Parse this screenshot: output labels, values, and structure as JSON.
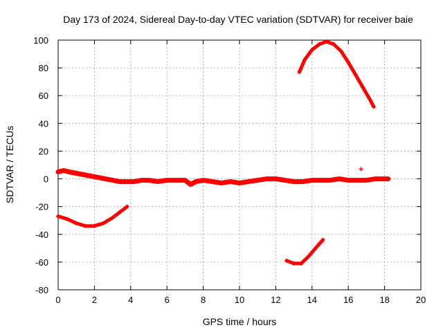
{
  "chart_data": {
    "type": "scatter",
    "title": "Day 173 of 2024, Sidereal Day-to-day VTEC variation (SDTVAR) for receiver baie",
    "xlabel": "GPS time / hours",
    "ylabel": "SDTVAR / TECUs",
    "xlim": [
      0,
      20
    ],
    "ylim": [
      -80,
      100
    ],
    "x_ticks": [
      0,
      2,
      4,
      6,
      8,
      10,
      12,
      14,
      16,
      18,
      20
    ],
    "y_ticks": [
      -80,
      -60,
      -40,
      -20,
      0,
      20,
      40,
      60,
      80,
      100
    ],
    "grid": true,
    "marker": "+",
    "marker_color": "#ff0000",
    "series": [
      {
        "name": "main-band",
        "x": [
          0.0,
          0.3,
          0.6,
          1.0,
          1.4,
          1.8,
          2.2,
          2.6,
          3.0,
          3.4,
          3.8,
          4.2,
          4.6,
          5.0,
          5.5,
          6.0,
          6.5,
          7.0,
          7.3,
          7.6,
          8.0,
          8.5,
          9.0,
          9.5,
          10.0,
          10.5,
          11.0,
          11.5,
          12.0,
          12.5,
          13.0,
          13.5,
          14.0,
          14.5,
          15.0,
          15.5,
          16.0,
          16.5,
          17.0,
          17.5,
          18.0,
          18.2
        ],
        "y": [
          5,
          6,
          5,
          4,
          3,
          2,
          1,
          0,
          -1,
          -2,
          -2,
          -2,
          -1,
          -1,
          -2,
          -1,
          -1,
          -1,
          -4,
          -2,
          -1,
          -2,
          -3,
          -2,
          -3,
          -2,
          -1,
          0,
          0,
          -1,
          -2,
          -2,
          -1,
          -1,
          -1,
          0,
          -1,
          -1,
          -1,
          0,
          0,
          0
        ]
      },
      {
        "name": "arc-upper-right",
        "x": [
          13.3,
          13.6,
          14.0,
          14.4,
          14.8,
          15.2,
          15.6,
          16.0,
          16.4,
          16.8,
          17.2,
          17.4
        ],
        "y": [
          77,
          86,
          93,
          97,
          99,
          97,
          92,
          84,
          75,
          66,
          57,
          52
        ]
      },
      {
        "name": "arc-lower-left",
        "x": [
          0.0,
          0.5,
          1.0,
          1.5,
          2.0,
          2.5,
          3.0,
          3.4,
          3.8
        ],
        "y": [
          -27,
          -29,
          -32,
          -34,
          -34,
          -32,
          -28,
          -24,
          -20
        ]
      },
      {
        "name": "arc-lower-mid",
        "x": [
          12.6,
          13.0,
          13.4,
          13.8,
          14.2,
          14.6
        ],
        "y": [
          -59,
          -61,
          -61,
          -56,
          -50,
          -44
        ]
      },
      {
        "name": "outlier",
        "x": [
          16.7
        ],
        "y": [
          7
        ]
      }
    ]
  }
}
